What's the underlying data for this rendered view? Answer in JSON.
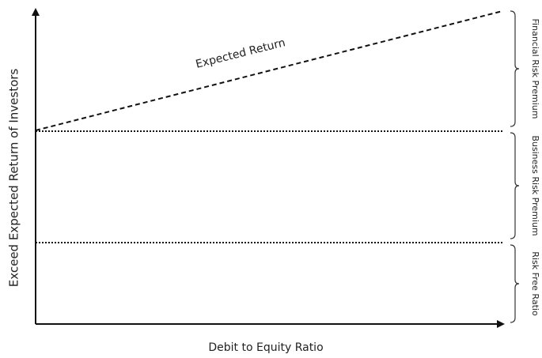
{
  "x_axis_label": "Debit to Equity Ratio",
  "y_axis_label": "Exceed Expected Return of Investors",
  "line_label": "Expected Return",
  "brackets": [
    {
      "label": "Financial Risk Premium"
    },
    {
      "label": "Business Risk Premium"
    },
    {
      "label": "Risk Free Ratio"
    }
  ]
}
